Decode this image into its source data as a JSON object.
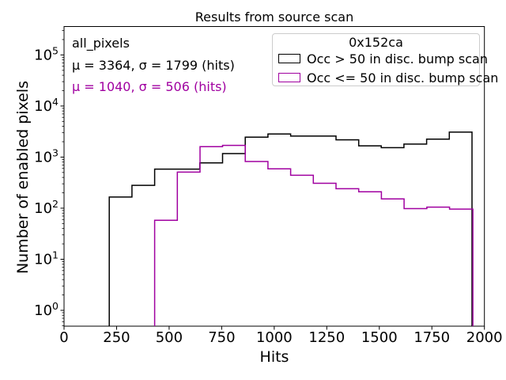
{
  "chart_data": {
    "type": "step-histogram",
    "title": "Results from source scan",
    "xlabel": "Hits",
    "ylabel": "Number of enabled pixels",
    "x_ticks": [
      0,
      250,
      500,
      750,
      1000,
      1250,
      1500,
      1750,
      2000
    ],
    "xlim": [
      0,
      2000
    ],
    "y_scale": "log",
    "y_tick_exponents": [
      0,
      1,
      2,
      3,
      4,
      5
    ],
    "ylim": [
      0.49,
      360000
    ],
    "grid": false,
    "legend": {
      "title": "0x152ca",
      "position": "upper right",
      "entries": [
        {
          "label": "Occ > 50 in disc. bump scan",
          "color": "#000000"
        },
        {
          "label": "Occ <= 50 in disc. bump scan",
          "color": "#A000A0"
        }
      ]
    },
    "annotations": [
      {
        "text": "all_pixels",
        "color": "#000000"
      },
      {
        "text": "μ = 3364, σ = 1799 (hits)",
        "color": "#000000"
      },
      {
        "text": "μ = 1040, σ = 506 (hits)",
        "color": "#A000A0"
      }
    ],
    "series": [
      {
        "name": "Occ > 50 in disc. bump scan",
        "color": "#000000",
        "bin_edges": [
          215,
          323,
          431,
          539,
          646,
          754,
          862,
          970,
          1078,
          1186,
          1294,
          1402,
          1509,
          1617,
          1725,
          1833,
          1941
        ],
        "counts": [
          165,
          280,
          583,
          583,
          770,
          1170,
          2450,
          2840,
          2580,
          2580,
          2180,
          1660,
          1530,
          1800,
          2240,
          3080
        ]
      },
      {
        "name": "Occ <= 50 in disc. bump scan",
        "color": "#A000A0",
        "bin_edges": [
          431,
          539,
          647,
          754,
          862,
          970,
          1078,
          1186,
          1294,
          1402,
          1510,
          1618,
          1726,
          1834,
          1945
        ],
        "counts": [
          58,
          508,
          1600,
          1700,
          820,
          590,
          440,
          307,
          240,
          210,
          152,
          98,
          105,
          96
        ]
      }
    ]
  }
}
